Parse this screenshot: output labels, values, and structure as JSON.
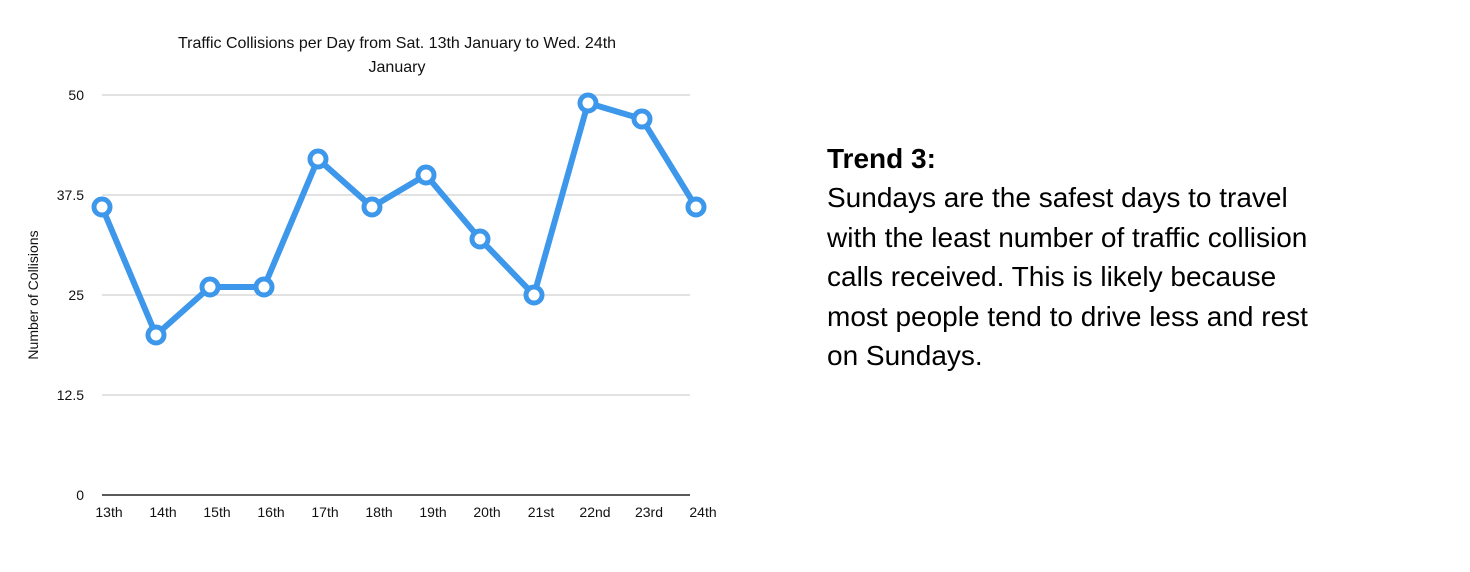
{
  "chart_data": {
    "type": "line",
    "title_lines": [
      "Traffic Collisions per Day from Sat. 13th January to Wed. 24th",
      "January"
    ],
    "ylabel": "Number of Collisions",
    "xlabel": "",
    "categories": [
      "13th",
      "14th",
      "15th",
      "16th",
      "17th",
      "18th",
      "19th",
      "20th",
      "21st",
      "22nd",
      "23rd",
      "24th"
    ],
    "series": [
      {
        "name": "Collisions",
        "values": [
          36,
          20,
          26,
          26,
          42,
          36,
          40,
          32,
          25,
          49,
          47,
          36
        ]
      }
    ],
    "ylim": [
      0,
      50
    ],
    "yticks": [
      0,
      12.5,
      25,
      37.5,
      50
    ],
    "ytick_labels": [
      "0",
      "12.5",
      "25",
      "37.5",
      "50"
    ],
    "grid": true,
    "colors": {
      "line": "#3d97ea",
      "marker_fill": "#ffffff",
      "grid": "#c4c4c4",
      "axis": "#222222"
    }
  },
  "trend": {
    "heading": "Trend 3:",
    "body_lines": [
      "Sundays are the safest days to travel",
      "with the least number of traffic collision",
      "calls received. This is likely because",
      "most people tend to drive less and rest",
      "on Sundays."
    ]
  }
}
